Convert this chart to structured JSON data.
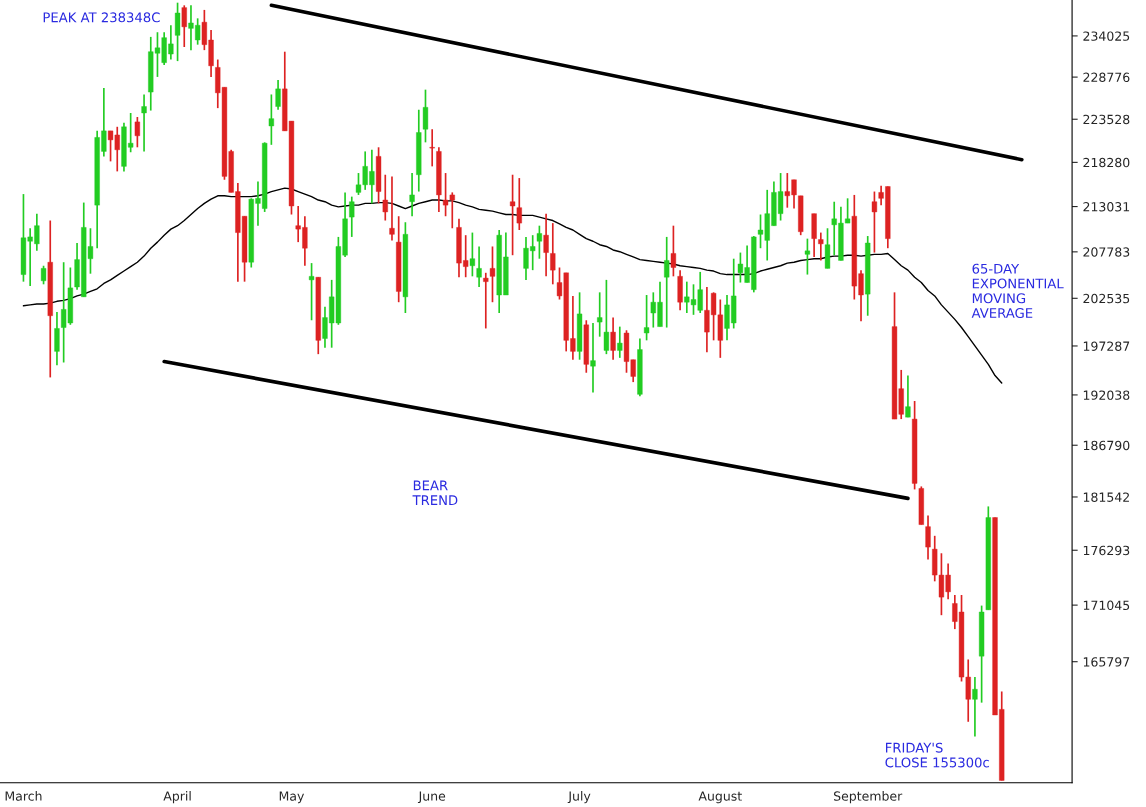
{
  "chart_data": {
    "type": "candlestick",
    "categories": [
      "March",
      null,
      null,
      null,
      null,
      null,
      null,
      null,
      null,
      null,
      null,
      null,
      null,
      null,
      null,
      null,
      null,
      null,
      null,
      null,
      null,
      null,
      null,
      "April",
      null,
      null,
      null,
      null,
      null,
      null,
      null,
      null,
      null,
      null,
      null,
      null,
      null,
      null,
      null,
      null,
      "May",
      null,
      null,
      null,
      null,
      null,
      null,
      null,
      null,
      null,
      null,
      null,
      null,
      null,
      null,
      null,
      null,
      null,
      null,
      null,
      null,
      "June",
      null,
      null,
      null,
      null,
      null,
      null,
      null,
      null,
      null,
      null,
      null,
      null,
      null,
      null,
      null,
      null,
      null,
      null,
      null,
      null,
      null,
      "July",
      null,
      null,
      null,
      null,
      null,
      null,
      null,
      null,
      null,
      null,
      null,
      null,
      null,
      null,
      null,
      null,
      null,
      null,
      null,
      null,
      "August",
      null,
      null,
      null,
      null,
      null,
      null,
      null,
      null,
      null,
      null,
      null,
      null,
      null,
      null,
      null,
      null,
      null,
      null,
      null,
      null,
      null,
      "September",
      null,
      null,
      null,
      null,
      null,
      null,
      null,
      null,
      null,
      null,
      null,
      null,
      null,
      null,
      null,
      null,
      null,
      null,
      null,
      null,
      null,
      null,
      null
    ],
    "ohlc": [
      [
        205200,
        214500,
        204400,
        209400
      ],
      [
        209000,
        210500,
        203900,
        209500
      ],
      [
        208700,
        212200,
        207900,
        210800
      ],
      [
        204500,
        206200,
        204100,
        205900
      ],
      [
        206600,
        211400,
        193900,
        200600
      ],
      [
        196700,
        201000,
        195200,
        199200
      ],
      [
        199300,
        206600,
        195500,
        201300
      ],
      [
        199800,
        206000,
        199600,
        203700
      ],
      [
        203800,
        208800,
        203500,
        206900
      ],
      [
        202700,
        213500,
        202700,
        210600
      ],
      [
        207000,
        210500,
        205300,
        208400
      ],
      [
        213200,
        222100,
        208200,
        221300
      ],
      [
        219600,
        227400,
        219000,
        222100
      ],
      [
        222100,
        222100,
        218400,
        221000
      ],
      [
        221600,
        222600,
        217200,
        219800
      ],
      [
        217800,
        223100,
        217200,
        222600
      ],
      [
        220100,
        224300,
        219500,
        220600
      ],
      [
        223200,
        223800,
        220100,
        221500
      ],
      [
        224300,
        226600,
        219600,
        225100
      ],
      [
        226900,
        233900,
        224600,
        232000
      ],
      [
        231800,
        234500,
        228800,
        232500
      ],
      [
        230600,
        234500,
        230300,
        233800
      ],
      [
        231700,
        235400,
        231000,
        233000
      ],
      [
        234100,
        238348,
        230800,
        237000
      ],
      [
        237700,
        238000,
        232600,
        235200
      ],
      [
        235000,
        238000,
        232200,
        235700
      ],
      [
        233500,
        236300,
        232900,
        235400
      ],
      [
        235800,
        237400,
        232200,
        232900
      ],
      [
        233500,
        234800,
        228800,
        230200
      ],
      [
        230000,
        231000,
        224900,
        226800
      ],
      [
        227500,
        227500,
        216200,
        216600
      ],
      [
        219600,
        219800,
        214700,
        214700
      ],
      [
        214800,
        215800,
        204400,
        210000
      ],
      [
        211900,
        211900,
        204400,
        206600
      ],
      [
        206600,
        214000,
        206000,
        213900
      ],
      [
        213400,
        216000,
        210800,
        214000
      ],
      [
        212800,
        220700,
        212400,
        220600
      ],
      [
        222700,
        226600,
        220400,
        223600
      ],
      [
        225100,
        228400,
        224700,
        227300
      ],
      [
        227300,
        232000,
        222100,
        222100
      ],
      [
        223300,
        223300,
        212100,
        213100
      ],
      [
        210800,
        213100,
        208900,
        210400
      ],
      [
        210600,
        211900,
        206200,
        208200
      ],
      [
        204600,
        206500,
        200100,
        205000
      ],
      [
        204900,
        204900,
        196400,
        197900
      ],
      [
        198100,
        201600,
        197100,
        200400
      ],
      [
        199800,
        204600,
        197100,
        202700
      ],
      [
        199800,
        209500,
        199600,
        208400
      ],
      [
        207400,
        214700,
        207200,
        211600
      ],
      [
        211800,
        214200,
        209500,
        213600
      ],
      [
        214700,
        217000,
        214400,
        215600
      ],
      [
        215600,
        219600,
        215000,
        217800
      ],
      [
        215600,
        219800,
        213400,
        217200
      ],
      [
        219000,
        220100,
        213400,
        214800
      ],
      [
        213800,
        216800,
        211400,
        212400
      ],
      [
        210500,
        216600,
        209100,
        209800
      ],
      [
        208900,
        211900,
        202100,
        203300
      ],
      [
        202700,
        211200,
        200900,
        209800
      ],
      [
        213600,
        217000,
        211900,
        214400
      ],
      [
        216800,
        224700,
        214800,
        221900
      ],
      [
        222300,
        227200,
        220700,
        225000
      ],
      [
        220100,
        222300,
        217800,
        220000
      ],
      [
        219600,
        220100,
        212400,
        214400
      ],
      [
        213800,
        217000,
        211900,
        213200
      ],
      [
        214400,
        214700,
        210500,
        213800
      ],
      [
        210600,
        211600,
        204900,
        206500
      ],
      [
        206800,
        209700,
        204900,
        206100
      ],
      [
        206200,
        210000,
        205000,
        207000
      ],
      [
        204900,
        208400,
        203800,
        205900
      ],
      [
        204800,
        205400,
        199200,
        204400
      ],
      [
        205900,
        208400,
        202100,
        205000
      ],
      [
        202900,
        210300,
        200900,
        209700
      ],
      [
        202900,
        210000,
        202900,
        207200
      ],
      [
        213600,
        216800,
        207400,
        213100
      ],
      [
        212900,
        216400,
        210300,
        211100
      ],
      [
        205900,
        209500,
        204600,
        208200
      ],
      [
        207900,
        209700,
        205700,
        208400
      ],
      [
        209000,
        210800,
        207000,
        209900
      ],
      [
        209700,
        212200,
        205000,
        207700
      ],
      [
        207600,
        211100,
        204100,
        205700
      ],
      [
        204300,
        206000,
        202400,
        202800
      ],
      [
        205400,
        205400,
        196700,
        197900
      ],
      [
        198100,
        202800,
        195800,
        196700
      ],
      [
        196700,
        203200,
        195800,
        200800
      ],
      [
        199600,
        200100,
        194400,
        195300
      ],
      [
        195100,
        199800,
        192300,
        195700
      ],
      [
        199900,
        203200,
        198300,
        200400
      ],
      [
        196800,
        204600,
        196400,
        198800
      ],
      [
        198800,
        200400,
        195800,
        196800
      ],
      [
        196800,
        199400,
        196000,
        197600
      ],
      [
        198700,
        199000,
        194400,
        195600
      ],
      [
        195800,
        195800,
        193400,
        194000
      ],
      [
        192100,
        198100,
        191900,
        196900
      ],
      [
        198700,
        202900,
        197900,
        199300
      ],
      [
        200900,
        203200,
        199300,
        202100
      ],
      [
        199400,
        204400,
        199400,
        202100
      ],
      [
        204900,
        209500,
        199300,
        206800
      ],
      [
        207600,
        210800,
        205000,
        206000
      ],
      [
        205000,
        205700,
        201200,
        202100
      ],
      [
        202100,
        204400,
        200900,
        202700
      ],
      [
        201800,
        204100,
        200700,
        202400
      ],
      [
        201200,
        205500,
        200900,
        203500
      ],
      [
        201200,
        203800,
        196600,
        198800
      ],
      [
        203100,
        203200,
        197900,
        200700
      ],
      [
        200700,
        202400,
        196000,
        197900
      ],
      [
        199200,
        202900,
        197900,
        201800
      ],
      [
        199800,
        207000,
        199200,
        202800
      ],
      [
        205400,
        207700,
        204300,
        206400
      ],
      [
        204300,
        208500,
        204300,
        206000
      ],
      [
        203500,
        209600,
        203200,
        209500
      ],
      [
        209800,
        212100,
        208200,
        210300
      ],
      [
        209100,
        215000,
        206800,
        212200
      ],
      [
        210800,
        216000,
        210800,
        214700
      ],
      [
        212200,
        217000,
        211400,
        214800
      ],
      [
        214800,
        217000,
        212900,
        214300
      ],
      [
        216200,
        216200,
        212800,
        214400
      ],
      [
        214300,
        214300,
        209700,
        210100
      ],
      [
        207500,
        209300,
        205200,
        207900
      ],
      [
        212200,
        212200,
        207200,
        209300
      ],
      [
        209200,
        210000,
        206800,
        208700
      ],
      [
        205900,
        210500,
        205900,
        208600
      ],
      [
        210900,
        213600,
        207400,
        211600
      ],
      [
        206800,
        213000,
        206800,
        211100
      ],
      [
        211100,
        214000,
        211100,
        211600
      ],
      [
        211900,
        214400,
        202400,
        203900
      ],
      [
        205300,
        205700,
        200000,
        202900
      ],
      [
        203000,
        209600,
        200600,
        208800
      ],
      [
        213600,
        214800,
        207700,
        212400
      ],
      [
        214700,
        215500,
        213200,
        214000
      ],
      [
        215400,
        215400,
        208200,
        209300
      ],
      [
        199400,
        203200,
        189500,
        189500
      ],
      [
        192700,
        194700,
        189500,
        190000
      ],
      [
        189700,
        194100,
        189700,
        190800
      ],
      [
        189500,
        191400,
        182300,
        182900
      ],
      [
        182400,
        182600,
        178800,
        178800
      ],
      [
        178600,
        179700,
        175400,
        176600
      ],
      [
        176400,
        177700,
        173300,
        173900
      ],
      [
        173900,
        176000,
        170100,
        171800
      ],
      [
        173900,
        175000,
        171600,
        172300
      ],
      [
        171200,
        172000,
        168800,
        169500
      ],
      [
        170400,
        172000,
        164000,
        164400
      ],
      [
        164400,
        166000,
        160400,
        162400
      ],
      [
        162400,
        164400,
        159100,
        163300
      ],
      [
        166300,
        171000,
        162100,
        170400
      ],
      [
        170600,
        180600,
        170600,
        179500
      ],
      [
        179500,
        179500,
        161000,
        161000
      ],
      [
        161500,
        163100,
        155300,
        155300
      ],
      null,
      null,
      null
    ],
    "colors": [
      "#22cc22",
      "#22cc22",
      "#22cc22",
      "#22cc22",
      "#dd2222",
      "#22cc22",
      "#22cc22",
      "#22cc22",
      "#22cc22",
      "#22cc22",
      "#22cc22",
      "#22cc22",
      "#22cc22",
      "#dd2222",
      "#dd2222",
      "#22cc22",
      "#22cc22",
      "#dd2222",
      "#22cc22",
      "#22cc22",
      "#22cc22",
      "#22cc22",
      "#22cc22",
      "#22cc22",
      "#dd2222",
      "#22cc22",
      "#22cc22",
      "#dd2222",
      "#dd2222",
      "#dd2222",
      "#dd2222",
      "#dd2222",
      "#dd2222",
      "#dd2222",
      "#22cc22",
      "#22cc22",
      "#22cc22",
      "#22cc22",
      "#22cc22",
      "#dd2222",
      "#dd2222",
      "#dd2222",
      "#dd2222",
      "#22cc22",
      "#dd2222",
      "#22cc22",
      "#22cc22",
      "#22cc22",
      "#22cc22",
      "#22cc22",
      "#22cc22",
      "#22cc22",
      "#22cc22",
      "#dd2222",
      "#dd2222",
      "#dd2222",
      "#dd2222",
      "#22cc22",
      "#22cc22",
      "#22cc22",
      "#22cc22",
      "#dd2222",
      "#dd2222",
      "#dd2222",
      "#dd2222",
      "#dd2222",
      "#dd2222",
      "#22cc22",
      "#22cc22",
      "#dd2222",
      "#dd2222",
      "#22cc22",
      "#22cc22",
      "#dd2222",
      "#dd2222",
      "#22cc22",
      "#22cc22",
      "#22cc22",
      "#dd2222",
      "#dd2222",
      "#dd2222",
      "#dd2222",
      "#dd2222",
      "#22cc22",
      "#dd2222",
      "#22cc22",
      "#22cc22",
      "#22cc22",
      "#dd2222",
      "#22cc22",
      "#dd2222",
      "#dd2222",
      "#22cc22",
      "#22cc22",
      "#22cc22",
      "#22cc22",
      "#22cc22",
      "#dd2222",
      "#dd2222",
      "#22cc22",
      "#22cc22",
      "#22cc22",
      "#dd2222",
      "#dd2222",
      "#dd2222",
      "#22cc22",
      "#22cc22",
      "#22cc22",
      "#22cc22",
      "#22cc22",
      "#22cc22",
      "#22cc22",
      "#22cc22",
      "#22cc22",
      "#dd2222",
      "#dd2222",
      "#dd2222",
      "#22cc22",
      "#dd2222",
      "#dd2222",
      "#22cc22",
      "#22cc22",
      "#22cc22",
      "#22cc22",
      "#dd2222",
      "#dd2222",
      "#22cc22",
      "#dd2222",
      "#dd2222",
      "#dd2222",
      "#dd2222",
      "#dd2222",
      "#22cc22",
      "#dd2222",
      "#dd2222",
      "#dd2222",
      "#dd2222",
      "#dd2222",
      "#dd2222",
      "#dd2222",
      "#dd2222",
      "#dd2222",
      "#22cc22",
      "#22cc22",
      "#22cc22",
      "#dd2222",
      "#dd2222",
      null,
      null,
      null
    ],
    "series": [
      {
        "name": "65-DAY EXPONENTIAL MOVING AVERAGE",
        "type": "line",
        "color": "#000000",
        "values": [
          201700,
          201800,
          201900,
          201900,
          202000,
          202200,
          202300,
          202500,
          202800,
          203000,
          203300,
          203600,
          204200,
          204600,
          205100,
          205600,
          206100,
          206600,
          207300,
          208200,
          208900,
          209700,
          210400,
          210800,
          211400,
          212100,
          212800,
          213400,
          213900,
          214300,
          214300,
          214200,
          214200,
          214200,
          214200,
          214300,
          214500,
          214800,
          215000,
          215200,
          215100,
          214800,
          214500,
          214200,
          213800,
          213600,
          213200,
          213000,
          213100,
          213200,
          213200,
          213400,
          213400,
          213500,
          213500,
          213400,
          213100,
          212800,
          213100,
          213400,
          213600,
          213800,
          213800,
          213700,
          213700,
          213500,
          213200,
          213000,
          212700,
          212600,
          212500,
          212300,
          212100,
          212100,
          212000,
          212000,
          212000,
          211800,
          211600,
          211400,
          211000,
          210600,
          210300,
          209800,
          209300,
          209000,
          208600,
          208400,
          208000,
          207800,
          207500,
          207200,
          206900,
          206800,
          206700,
          206600,
          206500,
          206400,
          206200,
          206100,
          206000,
          205900,
          205700,
          205600,
          205300,
          205200,
          205200,
          205200,
          205200,
          205300,
          205600,
          205800,
          206000,
          206200,
          206500,
          206600,
          206800,
          206900,
          207000,
          207000,
          207200,
          207300,
          207300,
          207400,
          207400,
          207300,
          207400,
          207500,
          207500,
          207600,
          206900,
          206200,
          205700,
          204900,
          204300,
          203400,
          202800,
          201800,
          201000,
          200200,
          199300,
          198300,
          197300,
          196300,
          195300,
          194100,
          193300,
          null,
          null,
          null
        ]
      },
      {
        "type": "line",
        "color": "#000000",
        "values": [
          null,
          null,
          null,
          null,
          null,
          null,
          null,
          null,
          null,
          null,
          null,
          null,
          null,
          null,
          null,
          null,
          null,
          null,
          null,
          null,
          null,
          null,
          null,
          null,
          null,
          null,
          null,
          null,
          null,
          null,
          null,
          null,
          null,
          null,
          null,
          null,
          null,
          238000,
          null,
          null,
          null,
          null,
          null,
          null,
          null,
          null,
          null,
          null,
          null,
          null,
          null,
          null,
          null,
          null,
          null,
          null,
          null,
          null,
          null,
          null,
          null,
          null,
          null,
          null,
          null,
          null,
          null,
          null,
          null,
          null,
          null,
          null,
          null,
          null,
          null,
          null,
          null,
          null,
          null,
          null,
          null,
          null,
          null,
          null,
          null,
          null,
          null,
          null,
          null,
          null,
          null,
          null,
          null,
          null,
          null,
          null,
          null,
          null,
          null,
          null,
          null,
          null,
          null,
          null,
          null,
          null,
          null,
          null,
          null,
          null,
          null,
          null,
          null,
          null,
          null,
          null,
          null,
          null,
          null,
          null,
          null,
          null,
          null,
          null,
          null,
          null,
          null,
          null,
          null,
          null,
          null,
          null,
          null,
          null,
          null,
          null,
          null,
          null,
          null,
          null,
          null,
          null,
          null,
          null,
          null,
          null,
          null,
          null,
          null,
          218600
        ]
      },
      {
        "type": "line",
        "color": "#000000",
        "values": [
          null,
          null,
          null,
          null,
          null,
          null,
          null,
          null,
          null,
          null,
          null,
          null,
          null,
          null,
          null,
          null,
          null,
          null,
          null,
          null,
          null,
          195600,
          null,
          null,
          null,
          null,
          null,
          null,
          null,
          null,
          null,
          null,
          null,
          null,
          null,
          null,
          null,
          null,
          null,
          null,
          null,
          null,
          null,
          null,
          null,
          null,
          null,
          null,
          null,
          null,
          null,
          null,
          null,
          null,
          null,
          null,
          null,
          null,
          null,
          null,
          null,
          null,
          null,
          null,
          null,
          null,
          null,
          null,
          null,
          null,
          null,
          null,
          null,
          null,
          null,
          null,
          null,
          null,
          null,
          null,
          null,
          null,
          null,
          null,
          null,
          null,
          null,
          null,
          null,
          null,
          null,
          null,
          null,
          null,
          null,
          null,
          null,
          null,
          null,
          null,
          null,
          null,
          null,
          null,
          null,
          null,
          null,
          null,
          null,
          null,
          null,
          null,
          null,
          null,
          null,
          null,
          null,
          null,
          null,
          null,
          null,
          null,
          null,
          null,
          null,
          null,
          null,
          null,
          null,
          null,
          null,
          null,
          181400,
          null,
          null,
          null,
          null,
          null,
          null,
          null,
          null,
          null,
          null,
          null,
          null,
          null,
          null,
          null,
          null,
          null
        ]
      }
    ],
    "log": true,
    "ylim": [
      155100,
      238700
    ],
    "yticks": [
      165797,
      171045,
      176293,
      181542,
      186790,
      192038,
      197287,
      202535,
      207783,
      213031,
      218280,
      223528,
      228776,
      234025
    ],
    "grid": false,
    "legend": false,
    "annotations": [
      "PEAK AT 238348C",
      "BEAR\nTREND",
      "FRIDAY'S\nCLOSE 155300c"
    ]
  }
}
